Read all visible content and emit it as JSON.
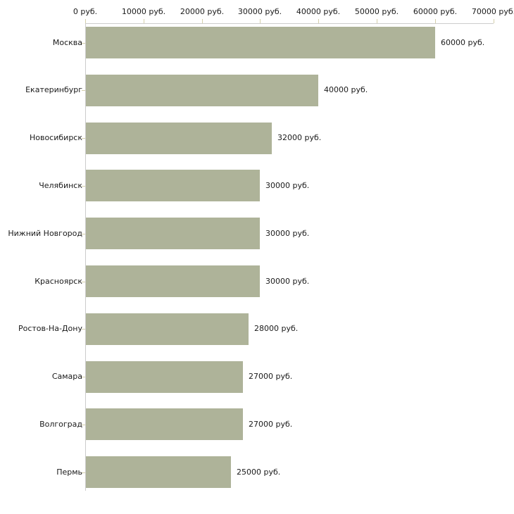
{
  "chart_data": {
    "type": "bar",
    "orientation": "horizontal",
    "title": "",
    "categories": [
      "Москва",
      "Екатеринбург",
      "Новосибирск",
      "Челябинск",
      "Нижний Новгород",
      "Красноярск",
      "Ростов-На-Дону",
      "Самара",
      "Волгоград",
      "Пермь"
    ],
    "values": [
      60000,
      40000,
      32000,
      30000,
      30000,
      30000,
      28000,
      27000,
      27000,
      25000
    ],
    "value_labels": [
      "60000 руб.",
      "40000 руб.",
      "32000 руб.",
      "30000 руб.",
      "30000 руб.",
      "30000 руб.",
      "28000 руб.",
      "27000 руб.",
      "27000 руб.",
      "25000 руб."
    ],
    "x_axis": {
      "position": "top",
      "tick_values": [
        0,
        10000,
        20000,
        30000,
        40000,
        50000,
        60000,
        70000
      ],
      "tick_labels": [
        "0 руб.",
        "10000 руб.",
        "20000 руб.",
        "30000 руб.",
        "40000 руб.",
        "50000 руб.",
        "60000 руб.",
        "70000 руб."
      ],
      "unit": "руб."
    },
    "xlim": [
      0,
      70000
    ],
    "ylabel": "",
    "xlabel": "",
    "grid": false,
    "legend": false,
    "colors": {
      "bar": "#aeb399",
      "axis": "#cccccc",
      "tick": "#d4cfab",
      "text": "#1a1a1a",
      "background": "#ffffff"
    }
  }
}
